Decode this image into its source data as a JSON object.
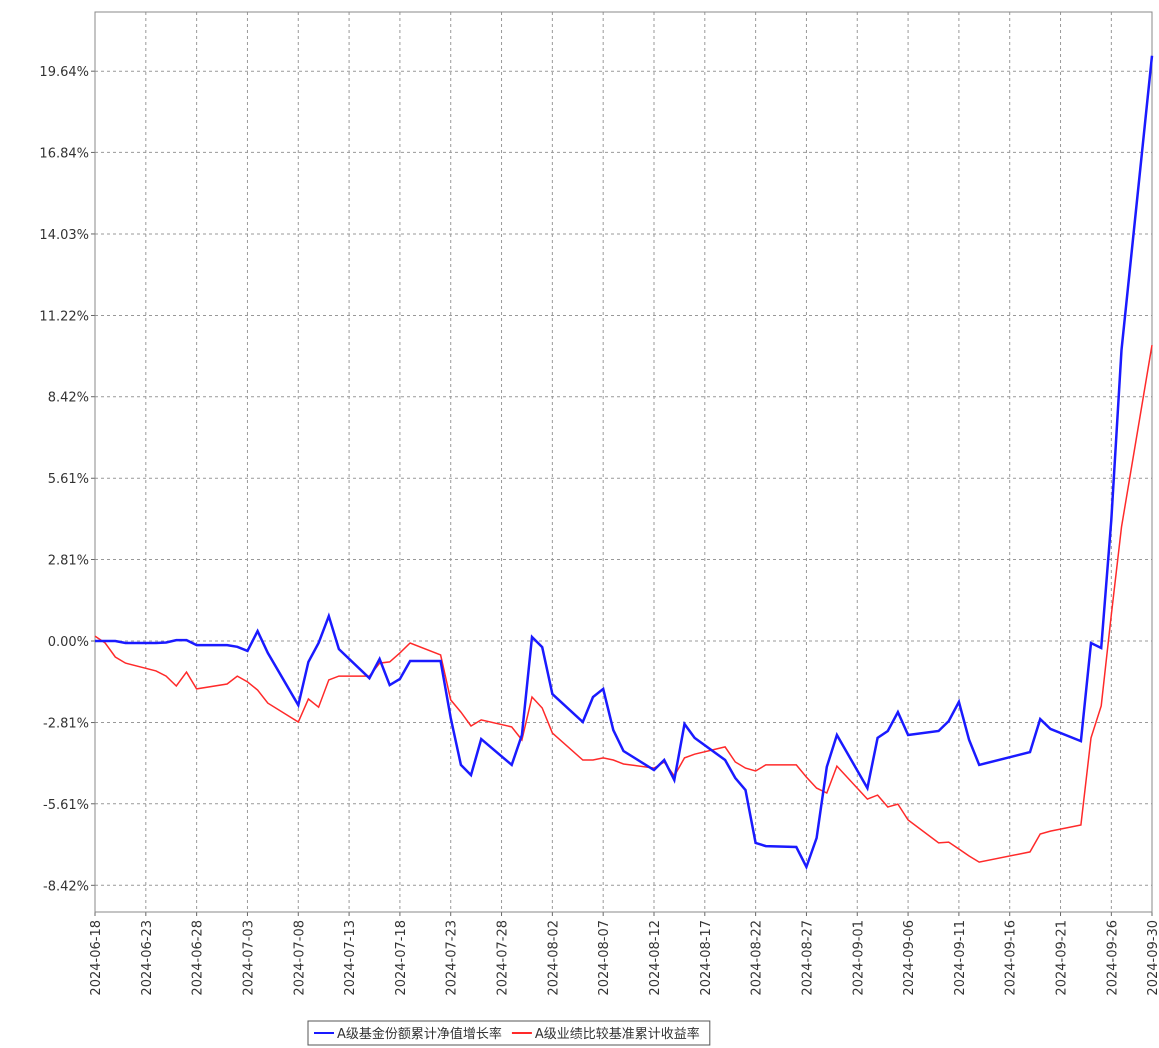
{
  "chart_data": {
    "type": "line",
    "x": [
      "2024-06-18",
      "2024-06-19",
      "2024-06-20",
      "2024-06-21",
      "2024-06-24",
      "2024-06-25",
      "2024-06-26",
      "2024-06-27",
      "2024-06-28",
      "2024-07-01",
      "2024-07-02",
      "2024-07-03",
      "2024-07-04",
      "2024-07-05",
      "2024-07-08",
      "2024-07-09",
      "2024-07-10",
      "2024-07-11",
      "2024-07-12",
      "2024-07-15",
      "2024-07-16",
      "2024-07-17",
      "2024-07-18",
      "2024-07-19",
      "2024-07-22",
      "2024-07-23",
      "2024-07-24",
      "2024-07-25",
      "2024-07-26",
      "2024-07-29",
      "2024-07-30",
      "2024-07-31",
      "2024-08-01",
      "2024-08-02",
      "2024-08-05",
      "2024-08-06",
      "2024-08-07",
      "2024-08-08",
      "2024-08-09",
      "2024-08-12",
      "2024-08-13",
      "2024-08-14",
      "2024-08-15",
      "2024-08-16",
      "2024-08-19",
      "2024-08-20",
      "2024-08-21",
      "2024-08-22",
      "2024-08-23",
      "2024-08-26",
      "2024-08-27",
      "2024-08-28",
      "2024-08-29",
      "2024-08-30",
      "2024-09-02",
      "2024-09-03",
      "2024-09-04",
      "2024-09-05",
      "2024-09-06",
      "2024-09-09",
      "2024-09-10",
      "2024-09-11",
      "2024-09-12",
      "2024-09-13",
      "2024-09-18",
      "2024-09-19",
      "2024-09-20",
      "2024-09-23",
      "2024-09-24",
      "2024-09-25",
      "2024-09-26",
      "2024-09-27",
      "2024-09-30"
    ],
    "series": [
      {
        "name": "A级基金份额累计净值增长率",
        "color": "#1a1aff",
        "values": [
          0.0,
          0.0,
          0.0,
          -0.07,
          -0.07,
          -0.05,
          0.03,
          0.03,
          -0.14,
          -0.14,
          -0.2,
          -0.34,
          0.34,
          -0.41,
          -2.21,
          -0.72,
          -0.07,
          0.86,
          -0.28,
          -1.28,
          -0.62,
          -1.52,
          -1.31,
          -0.69,
          -0.69,
          -2.65,
          -4.27,
          -4.62,
          -3.38,
          -4.27,
          -3.24,
          0.14,
          -0.21,
          -1.83,
          -2.79,
          -1.93,
          -1.65,
          -3.07,
          -3.79,
          -4.45,
          -4.1,
          -4.79,
          -2.86,
          -3.34,
          -4.1,
          -4.72,
          -5.14,
          -6.96,
          -7.07,
          -7.1,
          -7.79,
          -6.79,
          -4.34,
          -3.24,
          -5.07,
          -3.34,
          -3.1,
          -2.45,
          -3.24,
          -3.1,
          -2.76,
          -2.1,
          -3.41,
          -4.27,
          -3.83,
          -2.69,
          -3.03,
          -3.45,
          -0.07,
          -0.24,
          4.17,
          10.03,
          20.17
        ]
      },
      {
        "name": "A级业绩比较基准累计收益率",
        "color": "#ff2a2a",
        "values": [
          0.17,
          -0.07,
          -0.55,
          -0.76,
          -1.03,
          -1.21,
          -1.55,
          -1.07,
          -1.65,
          -1.48,
          -1.21,
          -1.41,
          -1.69,
          -2.14,
          -2.79,
          -2.0,
          -2.28,
          -1.34,
          -1.21,
          -1.21,
          -0.76,
          -0.72,
          -0.41,
          -0.07,
          -0.48,
          -2.03,
          -2.45,
          -2.93,
          -2.72,
          -2.96,
          -3.41,
          -1.93,
          -2.31,
          -3.17,
          -4.1,
          -4.1,
          -4.03,
          -4.1,
          -4.24,
          -4.38,
          -4.17,
          -4.65,
          -4.03,
          -3.9,
          -3.65,
          -4.17,
          -4.38,
          -4.48,
          -4.27,
          -4.27,
          -4.69,
          -5.07,
          -5.24,
          -4.31,
          -5.45,
          -5.31,
          -5.72,
          -5.62,
          -6.17,
          -6.96,
          -6.93,
          -7.17,
          -7.41,
          -7.62,
          -7.27,
          -6.65,
          -6.55,
          -6.34,
          -3.34,
          -2.24,
          0.9,
          3.93,
          10.2
        ]
      }
    ],
    "xlim": [
      "2024-06-18",
      "2024-09-30"
    ],
    "xticks": [
      "2024-06-18",
      "2024-06-23",
      "2024-06-28",
      "2024-07-03",
      "2024-07-08",
      "2024-07-13",
      "2024-07-18",
      "2024-07-23",
      "2024-07-28",
      "2024-08-02",
      "2024-08-07",
      "2024-08-12",
      "2024-08-17",
      "2024-08-22",
      "2024-08-27",
      "2024-09-01",
      "2024-09-06",
      "2024-09-11",
      "2024-09-16",
      "2024-09-21",
      "2024-09-26",
      "2024-09-30"
    ],
    "ylim": [
      -9.34,
      21.68
    ],
    "yticks": [
      {
        "value": -8.42,
        "label": "-8.42%"
      },
      {
        "value": -5.61,
        "label": "-5.61%"
      },
      {
        "value": -2.81,
        "label": "-2.81%"
      },
      {
        "value": 0,
        "label": "0.00%"
      },
      {
        "value": 2.81,
        "label": "2.81%"
      },
      {
        "value": 5.61,
        "label": "5.61%"
      },
      {
        "value": 8.42,
        "label": "8.42%"
      },
      {
        "value": 11.22,
        "label": "11.22%"
      },
      {
        "value": 14.03,
        "label": "14.03%"
      },
      {
        "value": 16.84,
        "label": "16.84%"
      },
      {
        "value": 19.64,
        "label": "19.64%"
      }
    ],
    "grid": true
  }
}
